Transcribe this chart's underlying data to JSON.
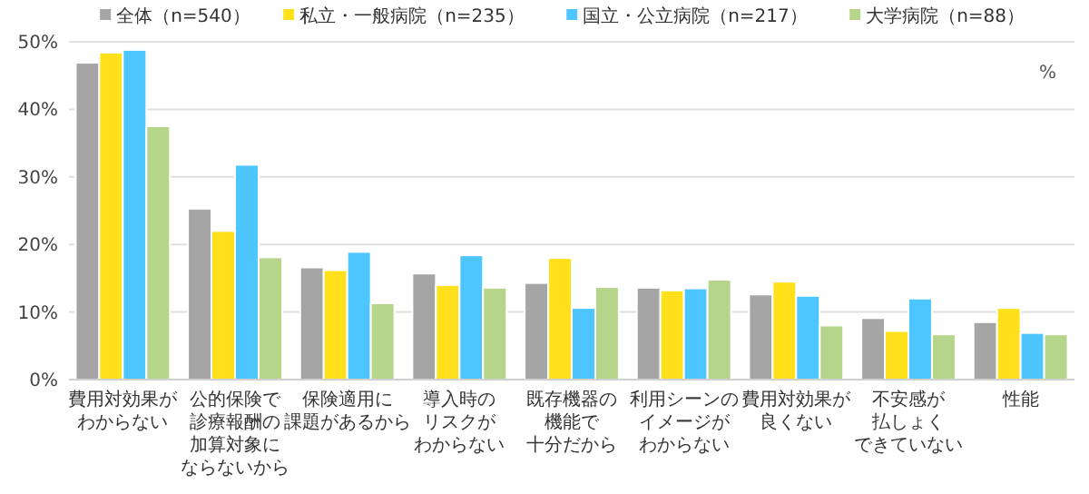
{
  "chart_data": {
    "type": "bar",
    "categories": [
      "費用対効果がわからない",
      "公的保険で診療報酬の加算対象にならないから",
      "保険適用に課題があるから",
      "導入時のリスクがわからない",
      "既存機器の機能で十分だから",
      "利用シーンのイメージがわからない",
      "費用対効果が良くない",
      "不安感が払しょくできていない",
      "性能"
    ],
    "series": [
      {
        "name": "全体（n=540）",
        "color": "#a5a5a5",
        "values": [
          46.9,
          25.3,
          16.6,
          15.7,
          14.3,
          13.6,
          12.6,
          9.1,
          8.5
        ]
      },
      {
        "name": "私立・一般病院（n=235）",
        "color": "#ffe01b",
        "values": [
          48.4,
          22.0,
          16.2,
          14.0,
          18.0,
          13.2,
          14.5,
          7.2,
          10.6
        ]
      },
      {
        "name": "国立・公立病院（n=217）",
        "color": "#4dc6ff",
        "values": [
          48.8,
          31.8,
          18.9,
          18.4,
          10.6,
          13.5,
          12.4,
          12.0,
          6.9
        ]
      },
      {
        "name": "大学病院（n=88）",
        "color": "#b5d68a",
        "values": [
          37.5,
          18.1,
          11.3,
          13.6,
          13.7,
          14.8,
          8.0,
          6.7,
          6.7
        ]
      }
    ],
    "ylim": [
      0,
      50
    ],
    "yticks": [
      {
        "value": 0,
        "label": "0%"
      },
      {
        "value": 10,
        "label": "10%"
      },
      {
        "value": 20,
        "label": "20%"
      },
      {
        "value": 30,
        "label": "30%"
      },
      {
        "value": 40,
        "label": "40%"
      },
      {
        "value": 50,
        "label": "50%"
      }
    ],
    "grid": "y",
    "legend": "top",
    "annotations": [
      "%"
    ]
  }
}
